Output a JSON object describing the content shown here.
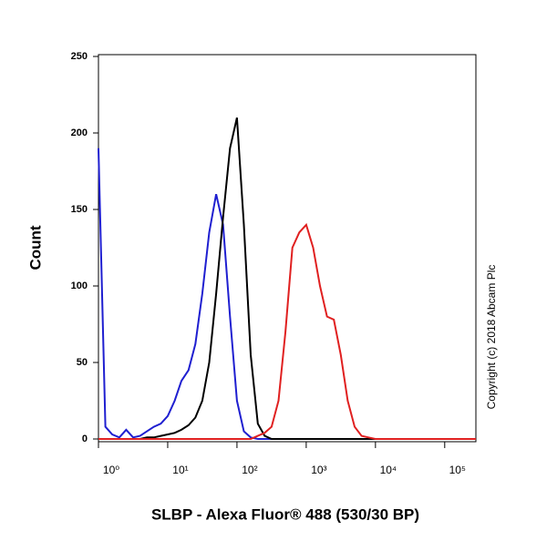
{
  "chart_data": {
    "type": "line",
    "y_label": "Count",
    "x_label": "SLBP - Alexa Fluor® 488 (530/30 BP)",
    "annotation": "Copyright (c) 2018 Abcam Plc",
    "x_scale": "log",
    "x": [
      1,
      1.26,
      1.58,
      2,
      2.51,
      3.16,
      3.98,
      5.01,
      6.31,
      7.94,
      10,
      12.6,
      15.8,
      20,
      25.1,
      31.6,
      39.8,
      50.1,
      63.1,
      79.4,
      100,
      126,
      158,
      200,
      251,
      316,
      398,
      501,
      631,
      794,
      1000,
      1260,
      1580,
      2000,
      2510,
      3160,
      3980,
      5010,
      6310,
      7940,
      10000,
      31600,
      100000,
      282000
    ],
    "series": [
      {
        "color": "#1f1fd0",
        "values": [
          190,
          8,
          3,
          1,
          6,
          1,
          2,
          5,
          8,
          10,
          15,
          25,
          38,
          45,
          62,
          95,
          135,
          160,
          140,
          80,
          25,
          5,
          1,
          0,
          0,
          0,
          0,
          0,
          0,
          0,
          0,
          0,
          0,
          0,
          0,
          0,
          0,
          0,
          0,
          0,
          0,
          0,
          0,
          0
        ]
      },
      {
        "color": "#000000",
        "values": [
          0,
          0,
          0,
          0,
          0,
          0,
          0,
          1,
          1,
          2,
          3,
          4,
          6,
          9,
          14,
          25,
          50,
          95,
          145,
          190,
          210,
          140,
          55,
          10,
          2,
          0,
          0,
          0,
          0,
          0,
          0,
          0,
          0,
          0,
          0,
          0,
          0,
          0,
          0,
          0,
          0,
          0,
          0,
          0
        ]
      },
      {
        "color": "#e02020",
        "values": [
          0,
          0,
          0,
          0,
          0,
          0,
          0,
          0,
          0,
          0,
          0,
          0,
          0,
          0,
          0,
          0,
          0,
          0,
          0,
          0,
          0,
          0,
          0,
          2,
          4,
          8,
          25,
          70,
          125,
          135,
          140,
          125,
          100,
          80,
          78,
          55,
          25,
          8,
          2,
          1,
          0,
          0,
          0,
          0
        ]
      }
    ],
    "xlim": [
      1,
      282000
    ],
    "ylim": [
      0,
      250
    ],
    "xticks": [
      {
        "value": 1,
        "label": "10⁰"
      },
      {
        "value": 10,
        "label": "10¹"
      },
      {
        "value": 100,
        "label": "10²"
      },
      {
        "value": 1000,
        "label": "10³"
      },
      {
        "value": 10000,
        "label": "10⁴"
      },
      {
        "value": 100000,
        "label": "10⁵"
      }
    ],
    "yticks": [
      0,
      50,
      100,
      150,
      200,
      250
    ]
  }
}
